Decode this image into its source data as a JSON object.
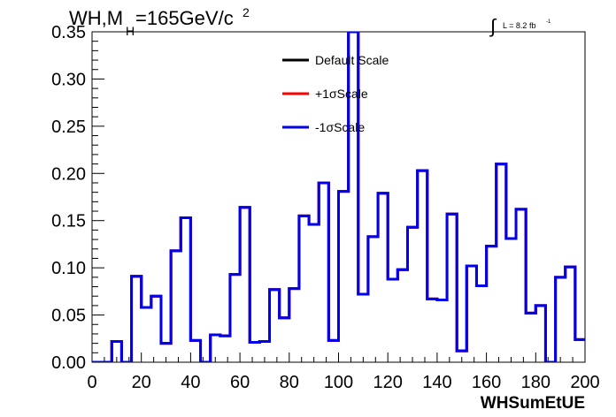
{
  "chart_data": {
    "type": "line",
    "title_main": "WH,M",
    "title_sub": "H",
    "title_rest": "=165GeV/c",
    "title_sup": "2",
    "lumi_symbol": "∫",
    "lumi_text": "L = 8.2 fb",
    "lumi_sup": "-1",
    "xlabel": "WHSumEtUE",
    "ylabel": "",
    "xlim": [
      0,
      200
    ],
    "ylim": [
      0,
      0.35
    ],
    "x_ticks": [
      "0",
      "20",
      "40",
      "60",
      "80",
      "100",
      "120",
      "140",
      "160",
      "180",
      "200"
    ],
    "y_ticks": [
      "0.00",
      "0.05",
      "0.10",
      "0.15",
      "0.20",
      "0.25",
      "0.30",
      "0.35"
    ],
    "bin_width": 4,
    "x_start": 0,
    "series": [
      {
        "name": "Default Scale",
        "color": "#000000",
        "values": [
          0.0,
          0.0,
          0.022,
          0.0,
          0.091,
          0.058,
          0.07,
          0.02,
          0.118,
          0.153,
          0.023,
          0.0,
          0.029,
          0.028,
          0.093,
          0.164,
          0.021,
          0.022,
          0.077,
          0.047,
          0.078,
          0.155,
          0.146,
          0.19,
          0.023,
          0.181,
          0.35,
          0.072,
          0.133,
          0.179,
          0.088,
          0.098,
          0.143,
          0.203,
          0.067,
          0.066,
          0.157,
          0.012,
          0.102,
          0.081,
          0.123,
          0.21,
          0.131,
          0.162,
          0.052,
          0.06,
          0.0,
          0.09,
          0.101,
          0.024
        ]
      },
      {
        "name": "+1σScale",
        "color": "#ff0000",
        "values": [
          0.0,
          0.0,
          0.022,
          0.0,
          0.091,
          0.058,
          0.07,
          0.02,
          0.118,
          0.153,
          0.023,
          0.0,
          0.029,
          0.028,
          0.093,
          0.164,
          0.021,
          0.022,
          0.077,
          0.047,
          0.078,
          0.155,
          0.146,
          0.19,
          0.023,
          0.181,
          0.35,
          0.072,
          0.133,
          0.179,
          0.088,
          0.098,
          0.143,
          0.203,
          0.067,
          0.066,
          0.157,
          0.012,
          0.102,
          0.081,
          0.123,
          0.21,
          0.131,
          0.162,
          0.052,
          0.06,
          0.0,
          0.09,
          0.101,
          0.024
        ]
      },
      {
        "name": "-1σScale",
        "color": "#0000ee",
        "values": [
          0.0,
          0.0,
          0.022,
          0.0,
          0.091,
          0.058,
          0.07,
          0.02,
          0.118,
          0.153,
          0.023,
          0.0,
          0.029,
          0.028,
          0.093,
          0.164,
          0.021,
          0.022,
          0.077,
          0.047,
          0.078,
          0.155,
          0.146,
          0.19,
          0.023,
          0.181,
          0.35,
          0.072,
          0.133,
          0.179,
          0.088,
          0.098,
          0.143,
          0.203,
          0.067,
          0.066,
          0.157,
          0.012,
          0.102,
          0.081,
          0.123,
          0.21,
          0.131,
          0.162,
          0.052,
          0.06,
          0.0,
          0.09,
          0.101,
          0.024
        ]
      }
    ],
    "grid": false,
    "legend_position": "top-center"
  }
}
